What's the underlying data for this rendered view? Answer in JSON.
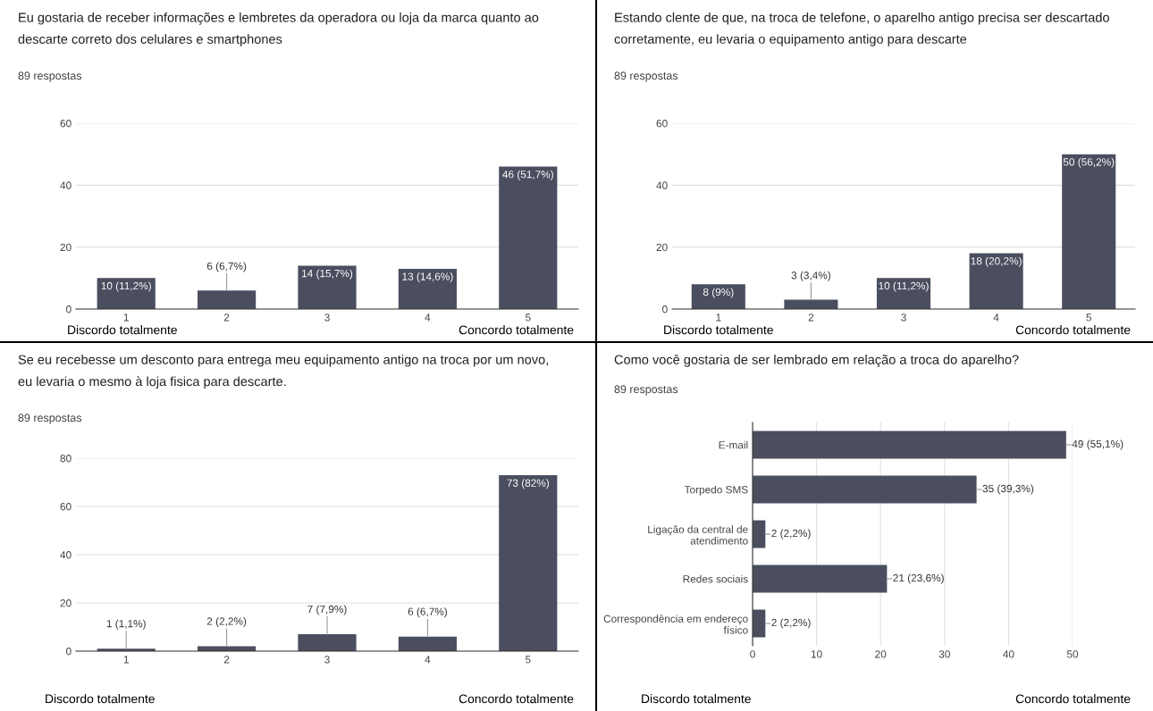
{
  "chart_data": [
    {
      "type": "bar",
      "title": "Eu gostaria de receber informações e lembretes da operadora ou loja da marca quanto ao\ndescarte correto dos celulares e smartphones",
      "subtitle": "89 respostas",
      "categories": [
        "1",
        "2",
        "3",
        "4",
        "5"
      ],
      "values": [
        10,
        6,
        14,
        13,
        46
      ],
      "value_labels": [
        "10 (11,2%)",
        "6 (6,7%)",
        "14 (15,7%)",
        "13 (14,6%)",
        "46 (51,7%)"
      ],
      "color": "#4a4e5f",
      "ylim": [
        0,
        60
      ],
      "yticks": [
        0,
        20,
        40,
        60
      ],
      "grid": "y",
      "annotations": [
        "Discordo totalmente",
        "Concordo totalmente"
      ]
    },
    {
      "type": "bar",
      "title": "Estando clente de que, na troca de telefone, o aparelho antigo precisa ser descartado\ncorretamente, eu levaria o equipamento antigo para descarte",
      "subtitle": "89 respostas",
      "categories": [
        "1",
        "2",
        "3",
        "4",
        "5"
      ],
      "values": [
        8,
        3,
        10,
        18,
        50
      ],
      "value_labels": [
        "8 (9%)",
        "3 (3,4%)",
        "10 (11,2%)",
        "18 (20,2%)",
        "50 (56,2%)"
      ],
      "color": "#4a4e5f",
      "ylim": [
        0,
        60
      ],
      "yticks": [
        0,
        20,
        40,
        60
      ],
      "grid": "y",
      "annotations": [
        "Discordo totalmente",
        "Concordo totalmente"
      ]
    },
    {
      "type": "bar",
      "title": "Se eu recebesse um desconto para entrega meu equipamento antigo na troca por um novo,\neu levaria o mesmo à loja fisica para descarte.",
      "subtitle": "89 respostas",
      "categories": [
        "1",
        "2",
        "3",
        "4",
        "5"
      ],
      "values": [
        1,
        2,
        7,
        6,
        73
      ],
      "value_labels": [
        "1 (1,1%)",
        "2 (2,2%)",
        "7 (7,9%)",
        "6 (6,7%)",
        "73 (82%)"
      ],
      "color": "#4a4e5f",
      "ylim": [
        0,
        80
      ],
      "yticks": [
        0,
        20,
        40,
        60,
        80
      ],
      "grid": "y",
      "annotations": [
        "Discordo totalmente",
        "Concordo totalmente"
      ]
    },
    {
      "type": "bar",
      "orientation": "horizontal",
      "title": "Como você gostaria de ser lembrado em relação a troca do aparelho?",
      "subtitle": "89 respostas",
      "categories": [
        "E-mail",
        "Torpedo SMS",
        "Ligação da central de\natendimento",
        "Redes sociais",
        "Correspondência em endereço\nfísico"
      ],
      "values": [
        49,
        35,
        2,
        21,
        2
      ],
      "value_labels": [
        "49 (55,1%)",
        "35 (39,3%)",
        "2 (2,2%)",
        "21 (23,6%)",
        "2 (2,2%)"
      ],
      "color": "#4a4e5f",
      "xlim": [
        0,
        50
      ],
      "xticks": [
        0,
        10,
        20,
        30,
        40,
        50
      ],
      "grid": "x",
      "annotations": [
        "Discordo totalmente",
        "Concordo totalmente"
      ]
    }
  ]
}
